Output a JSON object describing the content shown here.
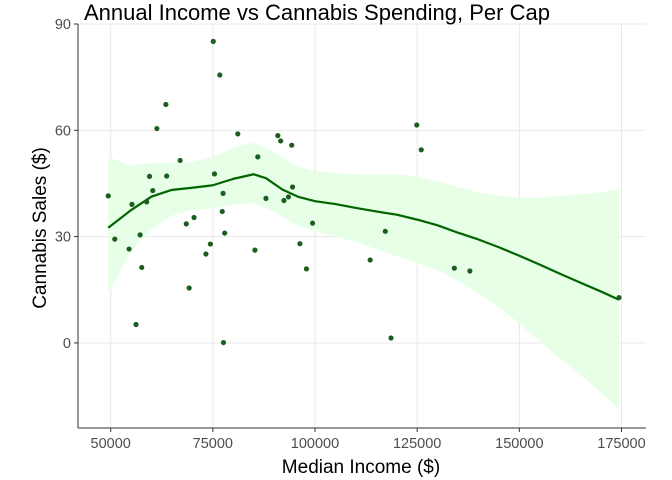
{
  "chart_data": {
    "type": "scatter",
    "title": "Annual Income vs Cannabis Spending, Per Cap",
    "xlabel": "Median Income ($)",
    "ylabel": "Cannabis Sales ($)",
    "xlim": [
      42000,
      181000
    ],
    "ylim": [
      -24,
      90
    ],
    "x_ticks": [
      50000,
      75000,
      100000,
      125000,
      150000,
      175000
    ],
    "x_tick_labels": [
      "50000",
      "75000",
      "100000",
      "125000",
      "150000",
      "175000"
    ],
    "y_ticks": [
      0,
      30,
      60,
      90
    ],
    "y_tick_labels": [
      "0",
      "30",
      "60",
      "90"
    ],
    "grid": true,
    "legend": "none",
    "colors": {
      "points": "#1b5e20",
      "smooth_line": "#006400",
      "confidence_band": "#e6ffe6",
      "grid": "#e8e8e8",
      "axis": "#333333"
    },
    "points": [
      {
        "x": 49400,
        "y": 41.5
      },
      {
        "x": 51000,
        "y": 29.3
      },
      {
        "x": 54500,
        "y": 26.5
      },
      {
        "x": 55200,
        "y": 39.1
      },
      {
        "x": 56200,
        "y": 5.2
      },
      {
        "x": 57200,
        "y": 30.5
      },
      {
        "x": 57600,
        "y": 21.3
      },
      {
        "x": 58800,
        "y": 39.8
      },
      {
        "x": 59500,
        "y": 47.0
      },
      {
        "x": 60300,
        "y": 43.0
      },
      {
        "x": 61300,
        "y": 60.5
      },
      {
        "x": 63500,
        "y": 67.3
      },
      {
        "x": 63700,
        "y": 47.1
      },
      {
        "x": 67000,
        "y": 51.5
      },
      {
        "x": 68500,
        "y": 33.6
      },
      {
        "x": 69200,
        "y": 15.5
      },
      {
        "x": 70400,
        "y": 35.4
      },
      {
        "x": 73300,
        "y": 25.1
      },
      {
        "x": 74400,
        "y": 27.9
      },
      {
        "x": 75100,
        "y": 85.1
      },
      {
        "x": 75400,
        "y": 47.7
      },
      {
        "x": 76700,
        "y": 75.6
      },
      {
        "x": 77300,
        "y": 37.1
      },
      {
        "x": 77500,
        "y": 42.2
      },
      {
        "x": 77600,
        "y": 0.1
      },
      {
        "x": 77900,
        "y": 31.0
      },
      {
        "x": 81100,
        "y": 59.0
      },
      {
        "x": 85300,
        "y": 26.2
      },
      {
        "x": 86000,
        "y": 52.5
      },
      {
        "x": 88000,
        "y": 40.8
      },
      {
        "x": 90900,
        "y": 58.5
      },
      {
        "x": 91600,
        "y": 57.0
      },
      {
        "x": 92400,
        "y": 40.2
      },
      {
        "x": 93500,
        "y": 41.2
      },
      {
        "x": 94300,
        "y": 55.8
      },
      {
        "x": 94500,
        "y": 44.0
      },
      {
        "x": 96300,
        "y": 28.0
      },
      {
        "x": 97900,
        "y": 20.9
      },
      {
        "x": 99400,
        "y": 33.8
      },
      {
        "x": 113500,
        "y": 23.4
      },
      {
        "x": 117200,
        "y": 31.5
      },
      {
        "x": 118600,
        "y": 1.4
      },
      {
        "x": 124900,
        "y": 61.5
      },
      {
        "x": 126000,
        "y": 54.5
      },
      {
        "x": 134100,
        "y": 21.1
      },
      {
        "x": 137900,
        "y": 20.3
      },
      {
        "x": 174400,
        "y": 12.8
      }
    ],
    "smooth_line": [
      {
        "x": 49400,
        "y": 32.5
      },
      {
        "x": 55000,
        "y": 37.5
      },
      {
        "x": 60000,
        "y": 41.3
      },
      {
        "x": 65000,
        "y": 43.2
      },
      {
        "x": 70000,
        "y": 43.8
      },
      {
        "x": 75000,
        "y": 44.5
      },
      {
        "x": 80000,
        "y": 46.3
      },
      {
        "x": 85000,
        "y": 47.6
      },
      {
        "x": 88000,
        "y": 46.5
      },
      {
        "x": 92000,
        "y": 43.3
      },
      {
        "x": 96000,
        "y": 41.2
      },
      {
        "x": 100000,
        "y": 40.0
      },
      {
        "x": 105000,
        "y": 39.2
      },
      {
        "x": 110000,
        "y": 38.1
      },
      {
        "x": 115000,
        "y": 37.1
      },
      {
        "x": 120000,
        "y": 36.2
      },
      {
        "x": 125000,
        "y": 34.8
      },
      {
        "x": 130000,
        "y": 33.2
      },
      {
        "x": 135000,
        "y": 31.1
      },
      {
        "x": 140000,
        "y": 29.2
      },
      {
        "x": 145000,
        "y": 27.0
      },
      {
        "x": 150000,
        "y": 24.6
      },
      {
        "x": 155000,
        "y": 22.1
      },
      {
        "x": 160000,
        "y": 19.5
      },
      {
        "x": 165000,
        "y": 17.0
      },
      {
        "x": 170000,
        "y": 14.5
      },
      {
        "x": 174400,
        "y": 12.2
      }
    ],
    "confidence_band": [
      {
        "x": 49400,
        "upper": 52.5,
        "lower": 14.0
      },
      {
        "x": 55000,
        "upper": 50.0,
        "lower": 26.0
      },
      {
        "x": 60000,
        "upper": 50.8,
        "lower": 32.0
      },
      {
        "x": 65000,
        "upper": 50.8,
        "lower": 36.0
      },
      {
        "x": 70000,
        "upper": 51.0,
        "lower": 37.5
      },
      {
        "x": 75000,
        "upper": 52.5,
        "lower": 38.0
      },
      {
        "x": 80000,
        "upper": 55.0,
        "lower": 39.0
      },
      {
        "x": 85000,
        "upper": 56.5,
        "lower": 39.5
      },
      {
        "x": 90000,
        "upper": 54.0,
        "lower": 37.0
      },
      {
        "x": 95000,
        "upper": 50.0,
        "lower": 33.5
      },
      {
        "x": 100000,
        "upper": 48.5,
        "lower": 31.5
      },
      {
        "x": 105000,
        "upper": 48.0,
        "lower": 30.0
      },
      {
        "x": 110000,
        "upper": 47.5,
        "lower": 28.5
      },
      {
        "x": 115000,
        "upper": 47.5,
        "lower": 26.5
      },
      {
        "x": 120000,
        "upper": 47.5,
        "lower": 24.5
      },
      {
        "x": 125000,
        "upper": 47.0,
        "lower": 22.5
      },
      {
        "x": 130000,
        "upper": 45.5,
        "lower": 20.5
      },
      {
        "x": 135000,
        "upper": 44.0,
        "lower": 17.5
      },
      {
        "x": 140000,
        "upper": 42.5,
        "lower": 14.0
      },
      {
        "x": 145000,
        "upper": 41.5,
        "lower": 10.0
      },
      {
        "x": 150000,
        "upper": 41.0,
        "lower": 5.5
      },
      {
        "x": 155000,
        "upper": 41.0,
        "lower": 0.5
      },
      {
        "x": 160000,
        "upper": 41.5,
        "lower": -4.5
      },
      {
        "x": 165000,
        "upper": 42.0,
        "lower": -9.0
      },
      {
        "x": 170000,
        "upper": 42.5,
        "lower": -14.0
      },
      {
        "x": 174400,
        "upper": 43.5,
        "lower": -18.5
      }
    ]
  }
}
